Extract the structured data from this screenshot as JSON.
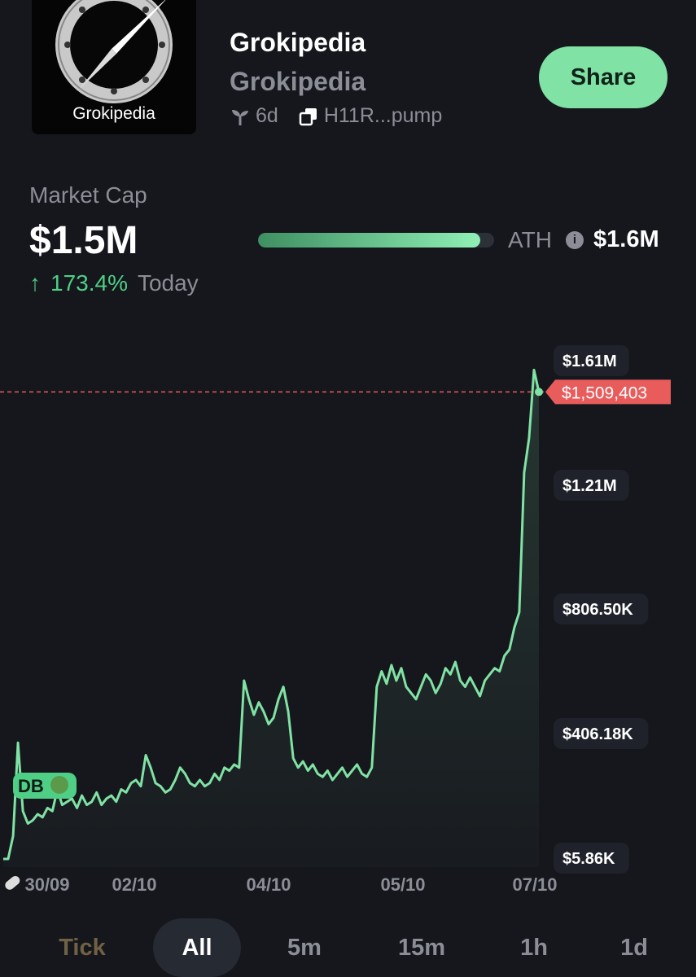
{
  "token": {
    "name": "Grokipedia",
    "ticker": "Grokipedia",
    "logo_text": "Grokipedia",
    "age": "6d",
    "address": "H11R...pump"
  },
  "share_label": "Share",
  "market_cap": {
    "label": "Market Cap",
    "value": "$1.5M",
    "change_arrow": "↑",
    "change_pct": "173.4%",
    "change_period": "Today"
  },
  "ath": {
    "label": "ATH",
    "info_icon": "i",
    "value": "$1.6M",
    "progress": 0.94
  },
  "chart_data": {
    "type": "line",
    "price_axis": [
      "$1.61M",
      "$1.21M",
      "$806.50K",
      "$406.18K",
      "$5.86K"
    ],
    "current_price": "$1,509,403",
    "x_labels": [
      "30/09",
      "02/10",
      "04/10",
      "05/10",
      "07/10"
    ],
    "marker": "DB",
    "color": "#80e2a4",
    "current_line_color": "#e85c5c",
    "series": [
      {
        "values": [
          5860,
          5900,
          80000,
          380000,
          160000,
          120000,
          130000,
          150000,
          140000,
          170000,
          160000,
          230000,
          180000,
          190000,
          200000,
          170000,
          210000,
          180000,
          190000,
          220000,
          180000,
          200000,
          210000,
          190000,
          230000,
          220000,
          250000,
          260000,
          240000,
          340000,
          300000,
          250000,
          240000,
          220000,
          230000,
          260000,
          300000,
          280000,
          250000,
          240000,
          260000,
          240000,
          250000,
          280000,
          260000,
          300000,
          290000,
          310000,
          300000,
          580000,
          520000,
          470000,
          510000,
          480000,
          440000,
          460000,
          520000,
          560000,
          480000,
          330000,
          300000,
          320000,
          290000,
          310000,
          280000,
          270000,
          290000,
          260000,
          280000,
          300000,
          270000,
          290000,
          310000,
          280000,
          270000,
          300000,
          560000,
          610000,
          570000,
          630000,
          580000,
          620000,
          560000,
          540000,
          520000,
          560000,
          600000,
          580000,
          540000,
          570000,
          620000,
          600000,
          640000,
          580000,
          560000,
          590000,
          560000,
          530000,
          580000,
          600000,
          620000,
          610000,
          660000,
          680000,
          750000,
          800000,
          1250000,
          1360000,
          1580000,
          1509403
        ]
      }
    ]
  },
  "timeframes": [
    "Tick",
    "All",
    "5m",
    "15m",
    "1h",
    "1d"
  ],
  "active_timeframe": "All"
}
